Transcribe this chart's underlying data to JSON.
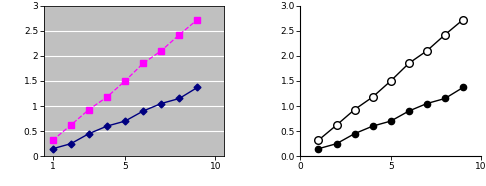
{
  "x": [
    1,
    2,
    3,
    4,
    5,
    6,
    7,
    8,
    9
  ],
  "series1": [
    0.15,
    0.25,
    0.45,
    0.6,
    0.7,
    0.9,
    1.05,
    1.15,
    1.37
  ],
  "series2": [
    0.32,
    0.62,
    0.93,
    1.18,
    1.5,
    1.85,
    2.1,
    2.42,
    2.72
  ],
  "left_bg": "#c0c0c0",
  "left_series1_color": "#000080",
  "left_series2_color": "#ff00ff",
  "left_ylim": [
    0,
    3
  ],
  "left_yticks": [
    0,
    0.5,
    1,
    1.5,
    2,
    2.5,
    3
  ],
  "left_xlim": [
    0.5,
    10.5
  ],
  "left_xticks": [
    1,
    5,
    10
  ],
  "right_ylim": [
    0,
    3.0
  ],
  "right_yticks": [
    0.0,
    0.5,
    1.0,
    1.5,
    2.0,
    2.5,
    3.0
  ],
  "right_xlim": [
    0,
    10
  ],
  "right_xticks": [
    0,
    5,
    10
  ]
}
